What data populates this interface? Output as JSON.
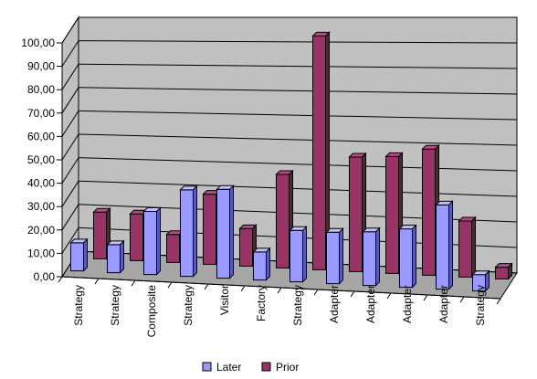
{
  "chart_data": {
    "type": "bar",
    "title": "",
    "xlabel": "",
    "ylabel": "",
    "ylim": [
      0,
      100
    ],
    "y_ticks": [
      "0,00",
      "10,00",
      "20,00",
      "30,00",
      "40,00",
      "50,00",
      "60,00",
      "70,00",
      "80,00",
      "90,00",
      "100,00"
    ],
    "categories": [
      "Strategy",
      "Strategy",
      "Composite",
      "Strategy",
      "Visitor",
      "Factory",
      "Strategy",
      "Adapter",
      "Adapter",
      "Adapter",
      "Adapter",
      "Strategy"
    ],
    "series": [
      {
        "name": "Later",
        "color": "#9999ff",
        "values": [
          12,
          12,
          27,
          37,
          38,
          12,
          22,
          22,
          23,
          25,
          36,
          7
        ]
      },
      {
        "name": "Prior",
        "color": "#993366",
        "values": [
          20,
          20,
          12,
          30,
          16,
          40,
          100,
          49,
          50,
          54,
          24,
          5
        ]
      }
    ],
    "grid": true,
    "legend_position": "bottom"
  }
}
